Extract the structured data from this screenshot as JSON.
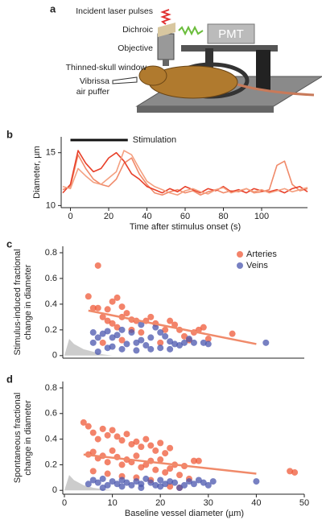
{
  "figure_a": {
    "panel": "a",
    "labels": [
      "Incident laser pulses",
      "Dichroic",
      "PMT",
      "Objective",
      "Thinned-skull window",
      "Vibrissa",
      "air puffer"
    ]
  },
  "chart_data": [
    {
      "type": "line",
      "panel": "b",
      "x_label": "Time after stimulus onset (s)",
      "y_label": [
        "Diameter, µm"
      ],
      "annotation": {
        "text": "Stimulation",
        "x": [
          0,
          30
        ]
      },
      "xlim": [
        -4,
        124
      ],
      "xticks": [
        0,
        20,
        40,
        60,
        80,
        100
      ],
      "ylim": [
        9.8,
        16.5
      ],
      "yticks": [
        10,
        15
      ],
      "x": [
        -4,
        0,
        4,
        8,
        12,
        16,
        20,
        24,
        28,
        32,
        36,
        40,
        44,
        48,
        52,
        56,
        60,
        64,
        68,
        72,
        76,
        80,
        84,
        88,
        92,
        96,
        100,
        104,
        108,
        112,
        116,
        120,
        124
      ],
      "series": [
        {
          "color": "#f08a6a",
          "values": [
            11.5,
            11.8,
            14.8,
            13.5,
            12.5,
            12.0,
            11.8,
            12.5,
            14.0,
            14.5,
            13.0,
            12.0,
            11.2,
            11.0,
            11.3,
            11.5,
            11.2,
            11.4,
            11.0,
            11.3,
            11.5,
            11.2,
            11.4,
            11.3,
            11.6,
            11.2,
            11.3,
            11.5,
            13.8,
            14.2,
            12.0,
            11.4,
            11.6
          ]
        },
        {
          "color": "#e8402a",
          "values": [
            11.2,
            12.0,
            15.2,
            14.0,
            13.2,
            13.5,
            14.5,
            15.0,
            14.2,
            13.0,
            12.5,
            11.8,
            11.5,
            11.2,
            11.6,
            11.3,
            11.8,
            11.5,
            11.2,
            11.6,
            11.4,
            11.8,
            11.3,
            11.5,
            11.2,
            11.6,
            11.4,
            11.3,
            11.5,
            11.2,
            11.6,
            11.8,
            11.3
          ]
        },
        {
          "color": "#f4a080",
          "values": [
            11.8,
            11.6,
            13.5,
            12.8,
            12.2,
            12.0,
            12.6,
            13.2,
            15.2,
            14.8,
            13.5,
            12.3,
            11.8,
            11.5,
            11.2,
            11.0,
            11.4,
            11.6,
            11.3,
            11.1,
            11.5,
            11.7,
            11.2,
            11.4,
            11.6,
            11.3,
            11.5,
            11.2,
            11.4,
            11.6,
            11.3,
            11.5,
            11.7
          ]
        }
      ]
    },
    {
      "type": "scatter",
      "panel": "c",
      "y_label": [
        "Stimulus-induced fractional",
        "change in diameter"
      ],
      "xlim": [
        0,
        50
      ],
      "ylim": [
        -0.02,
        0.85
      ],
      "yticks": [
        0,
        0.2,
        0.4,
        0.6,
        0.8
      ],
      "noise_floor": {
        "color": "#cccccc",
        "x": [
          0,
          1,
          2,
          4,
          6,
          8,
          10
        ],
        "values": [
          0,
          0.13,
          0.09,
          0.05,
          0.03,
          0.01,
          0
        ]
      },
      "fit": {
        "color": "#f08a6a",
        "x": [
          5,
          40
        ],
        "values": [
          0.35,
          0.09
        ]
      },
      "series": [
        {
          "name": "Arteries",
          "color": "#ef5a38",
          "x": [
            7,
            5,
            6,
            7,
            9,
            10,
            11,
            12,
            8,
            9,
            10,
            12,
            13,
            14,
            15,
            11,
            14,
            16,
            17,
            18,
            19,
            21,
            22,
            23,
            24,
            25,
            26,
            27,
            28,
            29,
            30,
            35,
            12,
            8,
            20
          ],
          "values": [
            0.7,
            0.46,
            0.37,
            0.37,
            0.36,
            0.42,
            0.45,
            0.38,
            0.3,
            0.27,
            0.25,
            0.3,
            0.33,
            0.28,
            0.27,
            0.22,
            0.2,
            0.18,
            0.27,
            0.3,
            0.25,
            0.2,
            0.27,
            0.24,
            0.2,
            0.15,
            0.12,
            0.18,
            0.2,
            0.22,
            0.13,
            0.17,
            0.12,
            0.1,
            0.1
          ]
        },
        {
          "name": "Veins",
          "color": "#4a55ad",
          "x": [
            6,
            7,
            8,
            9,
            10,
            11,
            12,
            13,
            14,
            15,
            16,
            17,
            18,
            19,
            20,
            21,
            22,
            23,
            24,
            25,
            26,
            27,
            29,
            30,
            42,
            6,
            9,
            12,
            15,
            18,
            7,
            10,
            16,
            20,
            22
          ],
          "values": [
            0.1,
            0.14,
            0.17,
            0.06,
            0.14,
            0.16,
            0.05,
            0.09,
            0.18,
            0.1,
            0.12,
            0.08,
            0.14,
            0.22,
            0.18,
            0.15,
            0.11,
            0.09,
            0.08,
            0.1,
            0.13,
            0.1,
            0.1,
            0.09,
            0.1,
            0.18,
            0.19,
            0.2,
            0.04,
            0.05,
            0.03,
            0.07,
            0.24,
            0.06,
            0.05
          ]
        }
      ]
    },
    {
      "type": "scatter",
      "panel": "d",
      "y_label": [
        "Spontaneous fractional",
        "change in diameter"
      ],
      "x_label": "Baseline vessel diameter (µm)",
      "xlim": [
        0,
        50
      ],
      "xticks": [
        0,
        10,
        20,
        30,
        40,
        50
      ],
      "ylim": [
        -0.03,
        0.85
      ],
      "yticks": [
        0,
        0.2,
        0.4,
        0.6,
        0.8
      ],
      "noise_floor": {
        "color": "#cccccc",
        "x": [
          0,
          1,
          2,
          4,
          6,
          8,
          10
        ],
        "values": [
          0,
          0.12,
          0.08,
          0.04,
          0.02,
          0.01,
          0
        ]
      },
      "fit": {
        "color": "#f08a6a",
        "x": [
          4,
          40
        ],
        "values": [
          0.28,
          0.13
        ]
      },
      "series": [
        {
          "color": "#ef5a38",
          "x": [
            4,
            5,
            6,
            7,
            8,
            9,
            10,
            11,
            12,
            13,
            14,
            15,
            16,
            17,
            18,
            19,
            20,
            21,
            22,
            5,
            6,
            7,
            8,
            9,
            10,
            11,
            12,
            13,
            14,
            15,
            16,
            17,
            18,
            19,
            20,
            21,
            22,
            23,
            24,
            25,
            26,
            27,
            28,
            6,
            9,
            12,
            15,
            18,
            47,
            48,
            22,
            24
          ],
          "values": [
            0.53,
            0.5,
            0.45,
            0.4,
            0.48,
            0.43,
            0.47,
            0.42,
            0.39,
            0.44,
            0.36,
            0.38,
            0.34,
            0.4,
            0.35,
            0.31,
            0.37,
            0.29,
            0.33,
            0.28,
            0.3,
            0.25,
            0.27,
            0.22,
            0.31,
            0.26,
            0.2,
            0.24,
            0.22,
            0.27,
            0.18,
            0.2,
            0.23,
            0.16,
            0.24,
            0.14,
            0.17,
            0.2,
            0.12,
            0.19,
            0.09,
            0.23,
            0.23,
            0.15,
            0.13,
            0.11,
            0.1,
            0.08,
            0.15,
            0.14,
            0.03,
            0.02
          ]
        },
        {
          "color": "#4a55ad",
          "x": [
            5,
            6,
            7,
            8,
            9,
            10,
            11,
            12,
            13,
            14,
            15,
            16,
            17,
            18,
            19,
            20,
            21,
            22,
            23,
            25,
            26,
            27,
            28,
            29,
            30,
            31,
            40,
            8,
            12,
            16,
            20,
            24
          ],
          "values": [
            0.05,
            0.08,
            0.06,
            0.09,
            0.04,
            0.07,
            0.05,
            0.08,
            0.06,
            0.04,
            0.07,
            0.05,
            0.09,
            0.06,
            0.04,
            0.08,
            0.05,
            0.07,
            0.06,
            0.04,
            0.07,
            0.05,
            0.08,
            0.06,
            0.04,
            0.07,
            0.07,
            0.02,
            0.03,
            0.02,
            0.03,
            0.02
          ]
        }
      ]
    }
  ]
}
